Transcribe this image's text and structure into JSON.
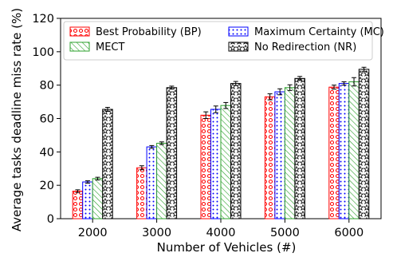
{
  "chart_data": {
    "type": "bar",
    "xlabel": "Number of Vehicles (#)",
    "ylabel": "Average tasks deadline miss rate (%)",
    "ylim": [
      0,
      120
    ],
    "yticks": [
      "0",
      "20",
      "40",
      "60",
      "80",
      "100",
      "120"
    ],
    "categories": [
      "2000",
      "3000",
      "4000",
      "5000",
      "6000"
    ],
    "legend": {
      "placement": "top-left",
      "columns": 2
    },
    "series": [
      {
        "name": "Best Probability (BP)",
        "color": "#ff0000",
        "pattern": "red-circles",
        "values": [
          16.5,
          30.5,
          62,
          73,
          78.8
        ],
        "errors": [
          0.8,
          1.2,
          2.0,
          1.8,
          1.2
        ]
      },
      {
        "name": "Maximum Certainty (MC)",
        "color": "#0000ff",
        "pattern": "blue-dots",
        "values": [
          22,
          43,
          65.5,
          76,
          81
        ],
        "errors": [
          0.7,
          0.8,
          2.0,
          1.8,
          1.0
        ]
      },
      {
        "name": "MECT",
        "color": "#2ca02c",
        "pattern": "green-hatch",
        "values": [
          24,
          45.2,
          67.8,
          78.5,
          82
        ],
        "errors": [
          0.8,
          0.8,
          1.8,
          1.7,
          2.5
        ]
      },
      {
        "name": "No Redirection (NR)",
        "color": "#000000",
        "pattern": "black-stars",
        "values": [
          65.5,
          78.5,
          81,
          84,
          89.5
        ],
        "errors": [
          1.2,
          0.9,
          1.2,
          1.2,
          1.2
        ]
      }
    ]
  }
}
